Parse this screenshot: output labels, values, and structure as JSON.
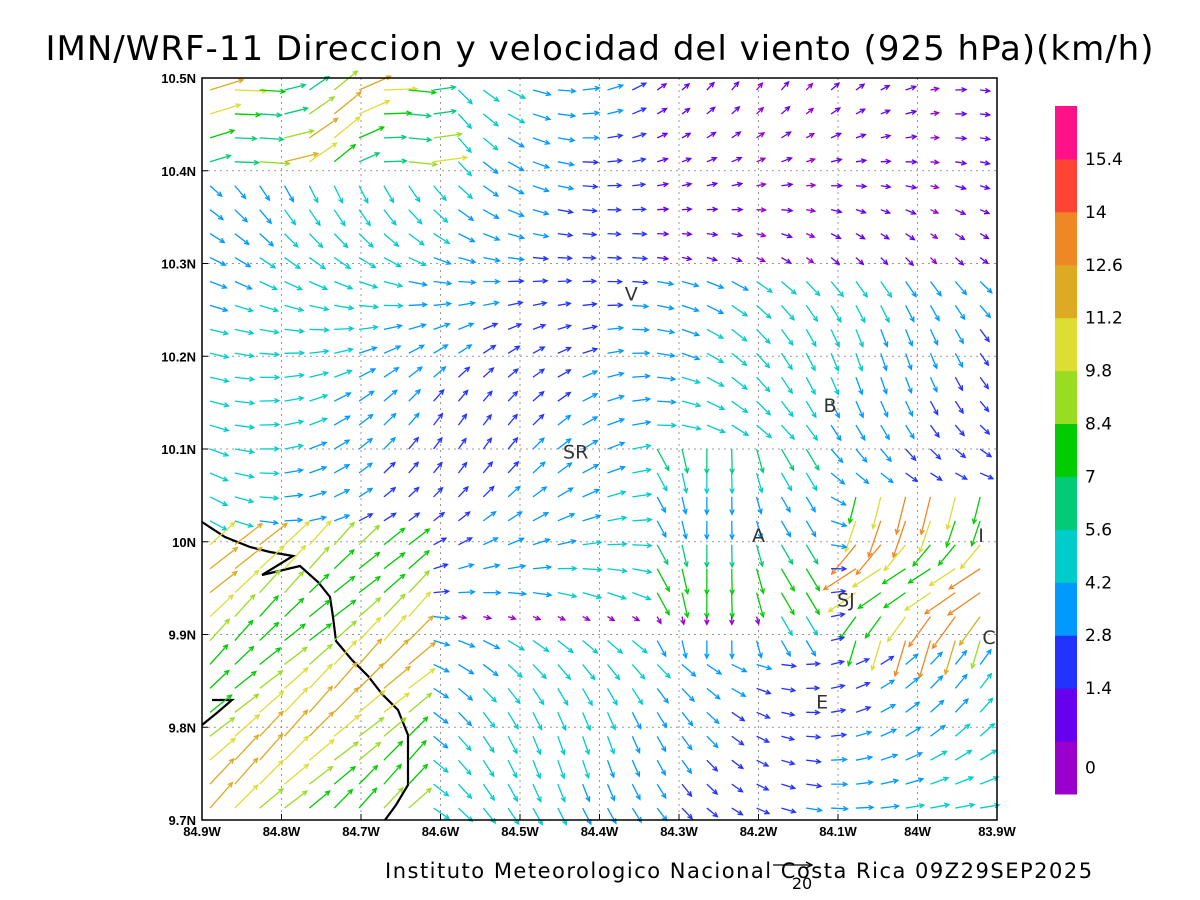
{
  "title": "IMN/WRF-11 Direccion y velocidad del viento (925 hPa)(km/h)",
  "footer": "Instituto Meteorologico Nacional Costa Rica 09Z29SEP2025",
  "reference_vector_label": "20",
  "chart_data": {
    "type": "wind-vector-map",
    "variable": "Direccion y velocidad del viento",
    "level": "925 hPa",
    "units": "km/h",
    "valid_time": "09Z29SEP2025",
    "x_ticks": [
      "84.9W",
      "84.8W",
      "84.7W",
      "84.6W",
      "84.5W",
      "84.4W",
      "84.3W",
      "84.2W",
      "84.1W",
      "84W",
      "83.9W"
    ],
    "y_ticks": [
      "10.5N",
      "10.4N",
      "10.3N",
      "10.2N",
      "10.1N",
      "10N",
      "9.9N",
      "9.8N",
      "9.7N"
    ],
    "xlim": [
      -84.9,
      -83.9
    ],
    "ylim": [
      9.7,
      10.5
    ],
    "grid": "dotted",
    "colorbar": {
      "labels": [
        "0",
        "1.4",
        "2.8",
        "4.2",
        "5.6",
        "7",
        "8.4",
        "9.8",
        "11.2",
        "12.6",
        "14",
        "15.4"
      ],
      "colors": [
        "#9900cc",
        "#6600ee",
        "#2233ff",
        "#0099ff",
        "#00cccc",
        "#00cc77",
        "#00cc00",
        "#99dd22",
        "#dddd33",
        "#ddaa22",
        "#ee8822",
        "#ff4433",
        "#ff1188"
      ]
    },
    "locations": [
      {
        "label": "V",
        "lon": -84.36,
        "lat": 10.26
      },
      {
        "label": "SR",
        "lon": -84.43,
        "lat": 10.09
      },
      {
        "label": "B",
        "lon": -84.11,
        "lat": 10.14
      },
      {
        "label": "A",
        "lon": -84.2,
        "lat": 10.0
      },
      {
        "label": "I",
        "lon": -83.92,
        "lat": 10.0
      },
      {
        "label": "SJ",
        "lon": -84.09,
        "lat": 9.93
      },
      {
        "label": "C",
        "lon": -83.91,
        "lat": 9.89
      },
      {
        "label": "E",
        "lon": -84.12,
        "lat": 9.82
      }
    ]
  }
}
